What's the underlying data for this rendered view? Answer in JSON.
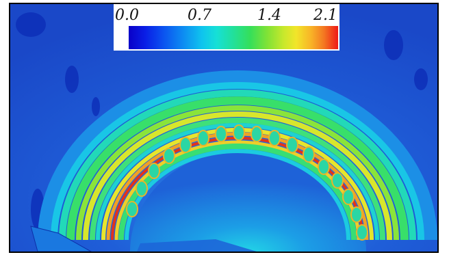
{
  "image": {
    "subject": "contour-plot-curved-band",
    "palette": {
      "background": "#1f57d8",
      "deep": "#0b2fb0",
      "cyan": "#19c9e6",
      "green": "#3fe07a",
      "yellow": "#e7e52c",
      "orange": "#f1a025",
      "red": "#e2331c",
      "border": "#000000"
    }
  },
  "legend": {
    "ticks": [
      "0.0",
      "0.7",
      "1.4",
      "2.1"
    ],
    "gradient_stops": [
      "#0a00c8",
      "#0b55f0",
      "#0fc4ee",
      "#22e09a",
      "#7fe236",
      "#f2e52a",
      "#f47a22",
      "#ee1a18"
    ]
  }
}
